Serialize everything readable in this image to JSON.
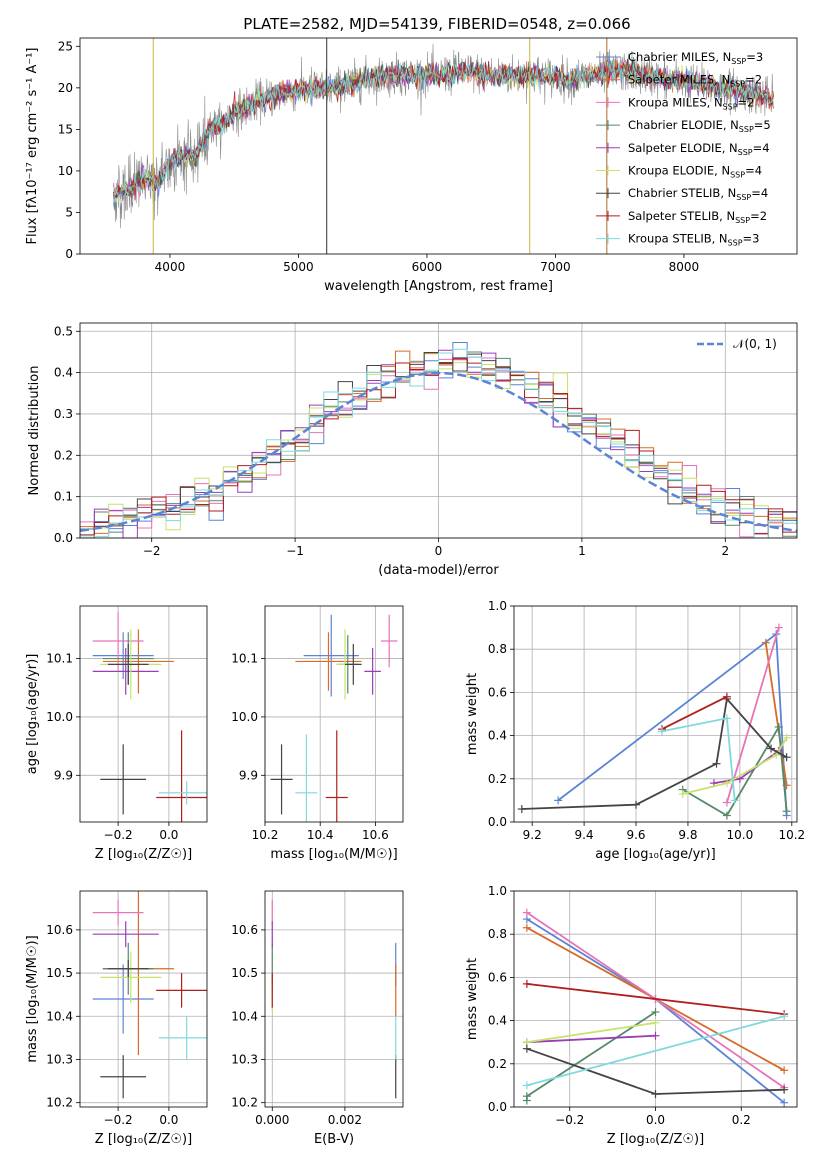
{
  "figure_title": "PLATE=2582, MJD=54139, FIBERID=0548, z=0.066",
  "colors": {
    "miles_chabrier": "#5b84d6",
    "miles_salpeter": "#d66b2a",
    "miles_kroupa": "#e873b8",
    "elodie_chabrier": "#55896a",
    "elodie_salpeter": "#9b3db6",
    "elodie_kroupa": "#c6e36b",
    "stelib_chabrier": "#444444",
    "stelib_salpeter": "#b01e1e",
    "stelib_kroupa": "#7fd9dd",
    "gauss": "#5b84d6",
    "grid": "#b0b0b0"
  },
  "chart_data": [
    {
      "id": "spectrum",
      "type": "line",
      "xlabel": "wavelength [Angstrom, rest frame]",
      "ylabel": "Flux [fλ10⁻¹⁷ erg cm⁻² s⁻¹ A⁻¹]",
      "xlim": [
        3300,
        8880
      ],
      "ylim": [
        0,
        26
      ],
      "xticks": [
        4000,
        5000,
        6000,
        7000,
        8000
      ],
      "yticks": [
        0,
        5,
        10,
        15,
        20,
        25
      ],
      "grid": false,
      "legend_position": "top-right",
      "continuum": {
        "x": [
          3560,
          3700,
          3800,
          3900,
          4000,
          4100,
          4200,
          4300,
          4400,
          4500,
          4700,
          4900,
          5100,
          5300,
          5500,
          5700,
          5900,
          6100,
          6300,
          6500,
          6700,
          6900,
          7100,
          7300,
          7500,
          7700,
          7900,
          8100,
          8300,
          8500,
          8700
        ],
        "y": [
          7,
          8,
          9,
          8.5,
          11,
          12,
          11.5,
          15,
          15.5,
          17,
          18.5,
          19.5,
          20,
          20,
          21,
          21.5,
          21.5,
          21.5,
          22,
          21.5,
          21.5,
          21.5,
          21,
          21.5,
          22,
          21.5,
          21,
          20.5,
          20,
          19.5,
          18.5
        ]
      },
      "legend": [
        {
          "label": "Chabrier MILES, N",
          "sub": "SSP",
          "suffix": "=3",
          "color_key": "miles_chabrier"
        },
        {
          "label": "Salpeter MILES, N",
          "sub": "SSP",
          "suffix": "=2",
          "color_key": "miles_salpeter"
        },
        {
          "label": "Kroupa MILES, N",
          "sub": "SSP",
          "suffix": "=2",
          "color_key": "miles_kroupa"
        },
        {
          "label": "Chabrier ELODIE, N",
          "sub": "SSP",
          "suffix": "=5",
          "color_key": "elodie_chabrier"
        },
        {
          "label": "Salpeter ELODIE, N",
          "sub": "SSP",
          "suffix": "=4",
          "color_key": "elodie_salpeter"
        },
        {
          "label": "Kroupa ELODIE, N",
          "sub": "SSP",
          "suffix": "=4",
          "color_key": "elodie_kroupa"
        },
        {
          "label": "Chabrier STELIB, N",
          "sub": "SSP",
          "suffix": "=4",
          "color_key": "stelib_chabrier"
        },
        {
          "label": "Salpeter STELIB, N",
          "sub": "SSP",
          "suffix": "=2",
          "color_key": "stelib_salpeter"
        },
        {
          "label": "Kroupa STELIB, N",
          "sub": "SSP",
          "suffix": "=3",
          "color_key": "stelib_kroupa"
        }
      ]
    },
    {
      "id": "residuals",
      "type": "histogram",
      "xlabel": "(data-model)/error",
      "ylabel": "Normed distribution",
      "xlim": [
        -2.5,
        2.5
      ],
      "ylim": [
        0,
        0.52
      ],
      "xticks": [
        -2,
        -1,
        0,
        1,
        2
      ],
      "yticks": [
        0.0,
        0.1,
        0.2,
        0.3,
        0.4,
        0.5
      ],
      "grid": true,
      "legend_position": "top-right",
      "gauss_label": "𝒩(0, 1)",
      "bins": 50,
      "series_color_keys": [
        "miles_chabrier",
        "miles_salpeter",
        "miles_kroupa",
        "elodie_chabrier",
        "elodie_salpeter",
        "elodie_kroupa",
        "stelib_chabrier",
        "stelib_salpeter",
        "stelib_kroupa"
      ]
    },
    {
      "id": "age_vs_Z",
      "type": "errorbar",
      "xlabel": "Z [log₁₀(Z/Z☉)]",
      "ylabel": "age  [log₁₀(age/yr)]",
      "xlim": [
        -0.35,
        0.15
      ],
      "ylim": [
        9.82,
        10.19
      ],
      "xticks": [
        -0.2,
        0.0
      ],
      "yticks": [
        9.9,
        10.0,
        10.1
      ],
      "grid": true,
      "points": [
        {
          "c": "miles_chabrier",
          "x": -0.18,
          "xe": 0.12,
          "y": 10.105,
          "ye": 0.04
        },
        {
          "c": "miles_salpeter",
          "x": -0.12,
          "xe": 0.14,
          "y": 10.095,
          "ye": 0.055
        },
        {
          "c": "miles_kroupa",
          "x": -0.2,
          "xe": 0.1,
          "y": 10.13,
          "ye": 0.05
        },
        {
          "c": "elodie_chabrier",
          "x": -0.16,
          "xe": 0.1,
          "y": 10.1,
          "ye": 0.045
        },
        {
          "c": "elodie_salpeter",
          "x": -0.17,
          "xe": 0.13,
          "y": 10.078,
          "ye": 0.04
        },
        {
          "c": "elodie_kroupa",
          "x": -0.15,
          "xe": 0.12,
          "y": 10.09,
          "ye": 0.06
        },
        {
          "c": "stelib_chabrier",
          "x": -0.18,
          "xe": 0.09,
          "y": 9.893,
          "ye": 0.06
        },
        {
          "c": "stelib_salpeter",
          "x": 0.05,
          "xe": 0.1,
          "y": 9.862,
          "ye": 0.115
        },
        {
          "c": "stelib_kroupa",
          "x": 0.07,
          "xe": 0.11,
          "y": 9.87,
          "ye": 0.02
        },
        {
          "c": "stelib_chabrier",
          "x": -0.16,
          "xe": 0.08,
          "y": 10.09,
          "ye": 0.035
        }
      ]
    },
    {
      "id": "age_vs_mass",
      "type": "errorbar",
      "xlabel": "mass [log₁₀(M/M☉)]",
      "ylabel": "",
      "xlim": [
        10.2,
        10.7
      ],
      "ylim": [
        9.82,
        10.19
      ],
      "xticks": [
        10.2,
        10.4,
        10.6
      ],
      "yticks": [
        9.9,
        10.0,
        10.1
      ],
      "grid": true,
      "points": [
        {
          "c": "miles_chabrier",
          "x": 10.44,
          "xe": 0.1,
          "y": 10.105,
          "ye": 0.07
        },
        {
          "c": "miles_salpeter",
          "x": 10.43,
          "xe": 0.12,
          "y": 10.095,
          "ye": 0.05
        },
        {
          "c": "miles_kroupa",
          "x": 10.65,
          "xe": 0.03,
          "y": 10.13,
          "ye": 0.045
        },
        {
          "c": "elodie_chabrier",
          "x": 10.5,
          "xe": 0.04,
          "y": 10.09,
          "ye": 0.05
        },
        {
          "c": "elodie_salpeter",
          "x": 10.59,
          "xe": 0.03,
          "y": 10.078,
          "ye": 0.04
        },
        {
          "c": "elodie_kroupa",
          "x": 10.49,
          "xe": 0.03,
          "y": 10.09,
          "ye": 0.06
        },
        {
          "c": "stelib_chabrier",
          "x": 10.26,
          "xe": 0.04,
          "y": 9.893,
          "ye": 0.06
        },
        {
          "c": "stelib_salpeter",
          "x": 10.46,
          "xe": 0.04,
          "y": 9.862,
          "ye": 0.115
        },
        {
          "c": "stelib_kroupa",
          "x": 10.35,
          "xe": 0.04,
          "y": 9.87,
          "ye": 0.1
        },
        {
          "c": "stelib_chabrier",
          "x": 10.52,
          "xe": 0.03,
          "y": 10.09,
          "ye": 0.035
        }
      ]
    },
    {
      "id": "massweight_vs_age",
      "type": "line",
      "xlabel": "age  [log₁₀(age/yr)]",
      "ylabel": "mass weight",
      "xlim": [
        9.13,
        10.22
      ],
      "ylim": [
        0,
        1
      ],
      "xticks": [
        9.2,
        9.4,
        9.6,
        9.8,
        10.0,
        10.2
      ],
      "yticks": [
        0.0,
        0.2,
        0.4,
        0.6,
        0.8,
        1.0
      ],
      "grid": true,
      "series": [
        {
          "c": "miles_chabrier",
          "x": [
            9.3,
            10.14,
            10.18
          ],
          "y": [
            0.1,
            0.87,
            0.03
          ]
        },
        {
          "c": "miles_salpeter",
          "x": [
            10.1,
            10.18
          ],
          "y": [
            0.83,
            0.17
          ]
        },
        {
          "c": "miles_kroupa",
          "x": [
            9.95,
            10.15
          ],
          "y": [
            0.09,
            0.9
          ]
        },
        {
          "c": "elodie_chabrier",
          "x": [
            9.78,
            9.95,
            10.15,
            10.18
          ],
          "y": [
            0.15,
            0.03,
            0.44,
            0.05
          ]
        },
        {
          "c": "elodie_salpeter",
          "x": [
            9.9,
            10.0,
            10.15
          ],
          "y": [
            0.18,
            0.2,
            0.33
          ]
        },
        {
          "c": "elodie_kroupa",
          "x": [
            9.78,
            9.95,
            10.14,
            10.18
          ],
          "y": [
            0.13,
            0.18,
            0.31,
            0.39
          ]
        },
        {
          "c": "stelib_chabrier",
          "x": [
            9.16,
            9.6,
            9.91,
            9.95,
            10.12,
            10.18
          ],
          "y": [
            0.06,
            0.08,
            0.27,
            0.57,
            0.34,
            0.3
          ]
        },
        {
          "c": "stelib_salpeter",
          "x": [
            9.7,
            9.95
          ],
          "y": [
            0.43,
            0.58
          ]
        },
        {
          "c": "stelib_kroupa",
          "x": [
            9.7,
            9.95,
            9.98
          ],
          "y": [
            0.42,
            0.48,
            0.1
          ]
        }
      ]
    },
    {
      "id": "mass_vs_Z",
      "type": "errorbar",
      "xlabel": "Z [log₁₀(Z/Z☉)]",
      "ylabel": "mass [log₁₀(M/M☉)]",
      "xlim": [
        -0.35,
        0.15
      ],
      "ylim": [
        10.19,
        10.69
      ],
      "xticks": [
        -0.2,
        0.0
      ],
      "yticks": [
        10.2,
        10.3,
        10.4,
        10.5,
        10.6
      ],
      "grid": true,
      "points": [
        {
          "c": "miles_chabrier",
          "x": -0.18,
          "xe": 0.12,
          "y": 10.44,
          "ye": 0.08
        },
        {
          "c": "miles_salpeter",
          "x": -0.12,
          "xe": 0.14,
          "y": 10.51,
          "ye": 0.2
        },
        {
          "c": "miles_kroupa",
          "x": -0.2,
          "xe": 0.1,
          "y": 10.64,
          "ye": 0.03
        },
        {
          "c": "elodie_chabrier",
          "x": -0.16,
          "xe": 0.1,
          "y": 10.51,
          "ye": 0.06
        },
        {
          "c": "elodie_salpeter",
          "x": -0.17,
          "xe": 0.13,
          "y": 10.59,
          "ye": 0.03
        },
        {
          "c": "elodie_kroupa",
          "x": -0.15,
          "xe": 0.12,
          "y": 10.49,
          "ye": 0.06
        },
        {
          "c": "stelib_chabrier",
          "x": -0.18,
          "xe": 0.09,
          "y": 10.26,
          "ye": 0.05
        },
        {
          "c": "stelib_salpeter",
          "x": 0.05,
          "xe": 0.1,
          "y": 10.46,
          "ye": 0.04
        },
        {
          "c": "stelib_kroupa",
          "x": 0.07,
          "xe": 0.11,
          "y": 10.35,
          "ye": 0.05
        },
        {
          "c": "stelib_chabrier",
          "x": -0.16,
          "xe": 0.08,
          "y": 10.51,
          "ye": 0.02
        }
      ]
    },
    {
      "id": "mass_vs_ebv",
      "type": "errorbar",
      "xlabel": "E(B-V)",
      "ylabel": "",
      "xlim": [
        -0.0002,
        0.0036
      ],
      "ylim": [
        10.19,
        10.69
      ],
      "xticks": [
        0.0,
        0.002
      ],
      "xtick_labels": [
        "0.000",
        "0.002"
      ],
      "yticks": [
        10.2,
        10.3,
        10.4,
        10.5,
        10.6
      ],
      "grid": true,
      "points": [
        {
          "c": "miles_chabrier",
          "x": 0.0034,
          "xe": 0,
          "y": 10.52,
          "ye": 0.05
        },
        {
          "c": "miles_salpeter",
          "x": 0.0034,
          "xe": 0,
          "y": 10.46,
          "ye": 0.06
        },
        {
          "c": "miles_kroupa",
          "x": 0.0,
          "xe": 0,
          "y": 10.64,
          "ye": 0.03
        },
        {
          "c": "elodie_chabrier",
          "x": 0.0,
          "xe": 0,
          "y": 10.51,
          "ye": 0.06
        },
        {
          "c": "elodie_salpeter",
          "x": 0.0,
          "xe": 0,
          "y": 10.59,
          "ye": 0.03
        },
        {
          "c": "elodie_kroupa",
          "x": 0.0,
          "xe": 0,
          "y": 10.44,
          "ye": 0.03
        },
        {
          "c": "stelib_chabrier",
          "x": 0.0034,
          "xe": 0,
          "y": 10.26,
          "ye": 0.05
        },
        {
          "c": "stelib_salpeter",
          "x": 0.0,
          "xe": 0,
          "y": 10.46,
          "ye": 0.04
        },
        {
          "c": "stelib_kroupa",
          "x": 0.0034,
          "xe": 0,
          "y": 10.35,
          "ye": 0.05
        }
      ]
    },
    {
      "id": "massweight_vs_Z",
      "type": "line",
      "xlabel": "Z [log₁₀(Z/Z☉)]",
      "ylabel": "mass weight",
      "xlim": [
        -0.33,
        0.33
      ],
      "ylim": [
        0,
        1
      ],
      "xticks": [
        -0.2,
        0.0,
        0.2
      ],
      "yticks": [
        0.0,
        0.2,
        0.4,
        0.6,
        0.8,
        1.0
      ],
      "grid": true,
      "series": [
        {
          "c": "miles_chabrier",
          "x": [
            -0.3,
            0.0,
            0.3
          ],
          "y": [
            0.87,
            0.5,
            0.02
          ]
        },
        {
          "c": "miles_salpeter",
          "x": [
            -0.3,
            0.0,
            0.3
          ],
          "y": [
            0.83,
            0.5,
            0.17
          ]
        },
        {
          "c": "miles_kroupa",
          "x": [
            -0.3,
            0.0,
            0.3
          ],
          "y": [
            0.9,
            0.5,
            0.09
          ]
        },
        {
          "c": "elodie_chabrier",
          "x": [
            -0.3,
            -0.3,
            0.0
          ],
          "y": [
            0.03,
            0.05,
            0.44
          ]
        },
        {
          "c": "elodie_salpeter",
          "x": [
            -0.3,
            0.0
          ],
          "y": [
            0.3,
            0.33
          ]
        },
        {
          "c": "elodie_kroupa",
          "x": [
            -0.3,
            0.0
          ],
          "y": [
            0.3,
            0.39
          ]
        },
        {
          "c": "stelib_chabrier",
          "x": [
            -0.3,
            0.0,
            0.3
          ],
          "y": [
            0.27,
            0.06,
            0.08
          ]
        },
        {
          "c": "stelib_salpeter",
          "x": [
            -0.3,
            0.3
          ],
          "y": [
            0.57,
            0.43
          ]
        },
        {
          "c": "stelib_kroupa",
          "x": [
            -0.3,
            0.3
          ],
          "y": [
            0.1,
            0.42
          ]
        }
      ]
    }
  ]
}
